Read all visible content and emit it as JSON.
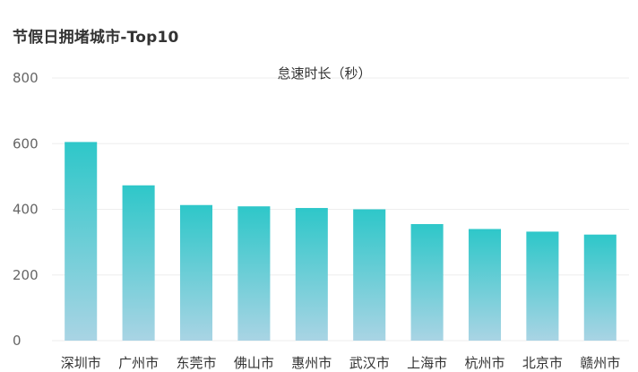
{
  "chart_data": {
    "type": "bar",
    "title": "节假日拥堵城市-Top10",
    "xlabel": "",
    "ylabel": "",
    "legend": {
      "position": "top-center"
    },
    "categories": [
      "深圳市",
      "广州市",
      "东莞市",
      "佛山市",
      "惠州市",
      "武汉市",
      "上海市",
      "杭州市",
      "北京市",
      "赣州市"
    ],
    "series": [
      {
        "name": "怠速时长（秒）",
        "values": [
          605,
          473,
          413,
          409,
          404,
          400,
          355,
          340,
          332,
          323
        ]
      }
    ],
    "ylim": [
      0,
      800
    ],
    "yticks": [
      0,
      200,
      400,
      600,
      800
    ],
    "grid": true,
    "colors": {
      "bar_top": "#2ec7c9",
      "bar_bottom": "#a9d4e4",
      "grid": "#eeeeee",
      "axis_text": "#666666"
    }
  }
}
